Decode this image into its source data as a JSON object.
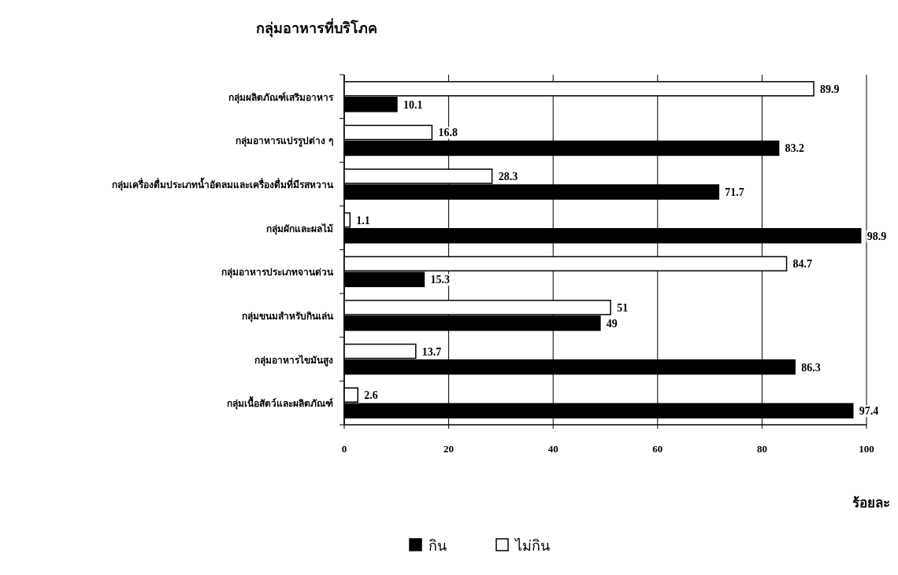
{
  "chart_data": {
    "type": "bar",
    "orientation": "horizontal",
    "title": "กลุ่มอาหารที่บริโภค",
    "xlabel": "ร้อยละ",
    "categories": [
      "กลุ่มผลิตภัณฑ์เสริมอาหาร",
      "กลุ่มอาหารแปรรูปต่าง ๆ",
      "กลุ่มเครื่องดื่มประเภทน้ำอัดลมและเครื่องดื่มที่มีรสหวาน",
      "กลุ่มผักและผลไม้",
      "กลุ่มอาหารประเภทจานด่วน",
      "กลุ่มขนมสำหรับกินเล่น",
      "กลุ่มอาหารไขมันสูง",
      "กลุ่มเนื้อสัตว์และผลิตภัณฑ์"
    ],
    "series": [
      {
        "name": "กิน",
        "color": "#000000",
        "values": [
          10.1,
          83.2,
          71.7,
          98.9,
          15.3,
          49,
          86.3,
          97.4
        ]
      },
      {
        "name": "ไม่กิน",
        "color": "#ffffff",
        "values": [
          89.9,
          16.8,
          28.3,
          1.1,
          84.7,
          51,
          13.7,
          2.6
        ]
      }
    ],
    "xlim": [
      0,
      100
    ],
    "xticks": [
      0,
      20,
      40,
      60,
      80,
      100
    ],
    "grid": "x",
    "legend": "bottom",
    "data_labels": true
  }
}
